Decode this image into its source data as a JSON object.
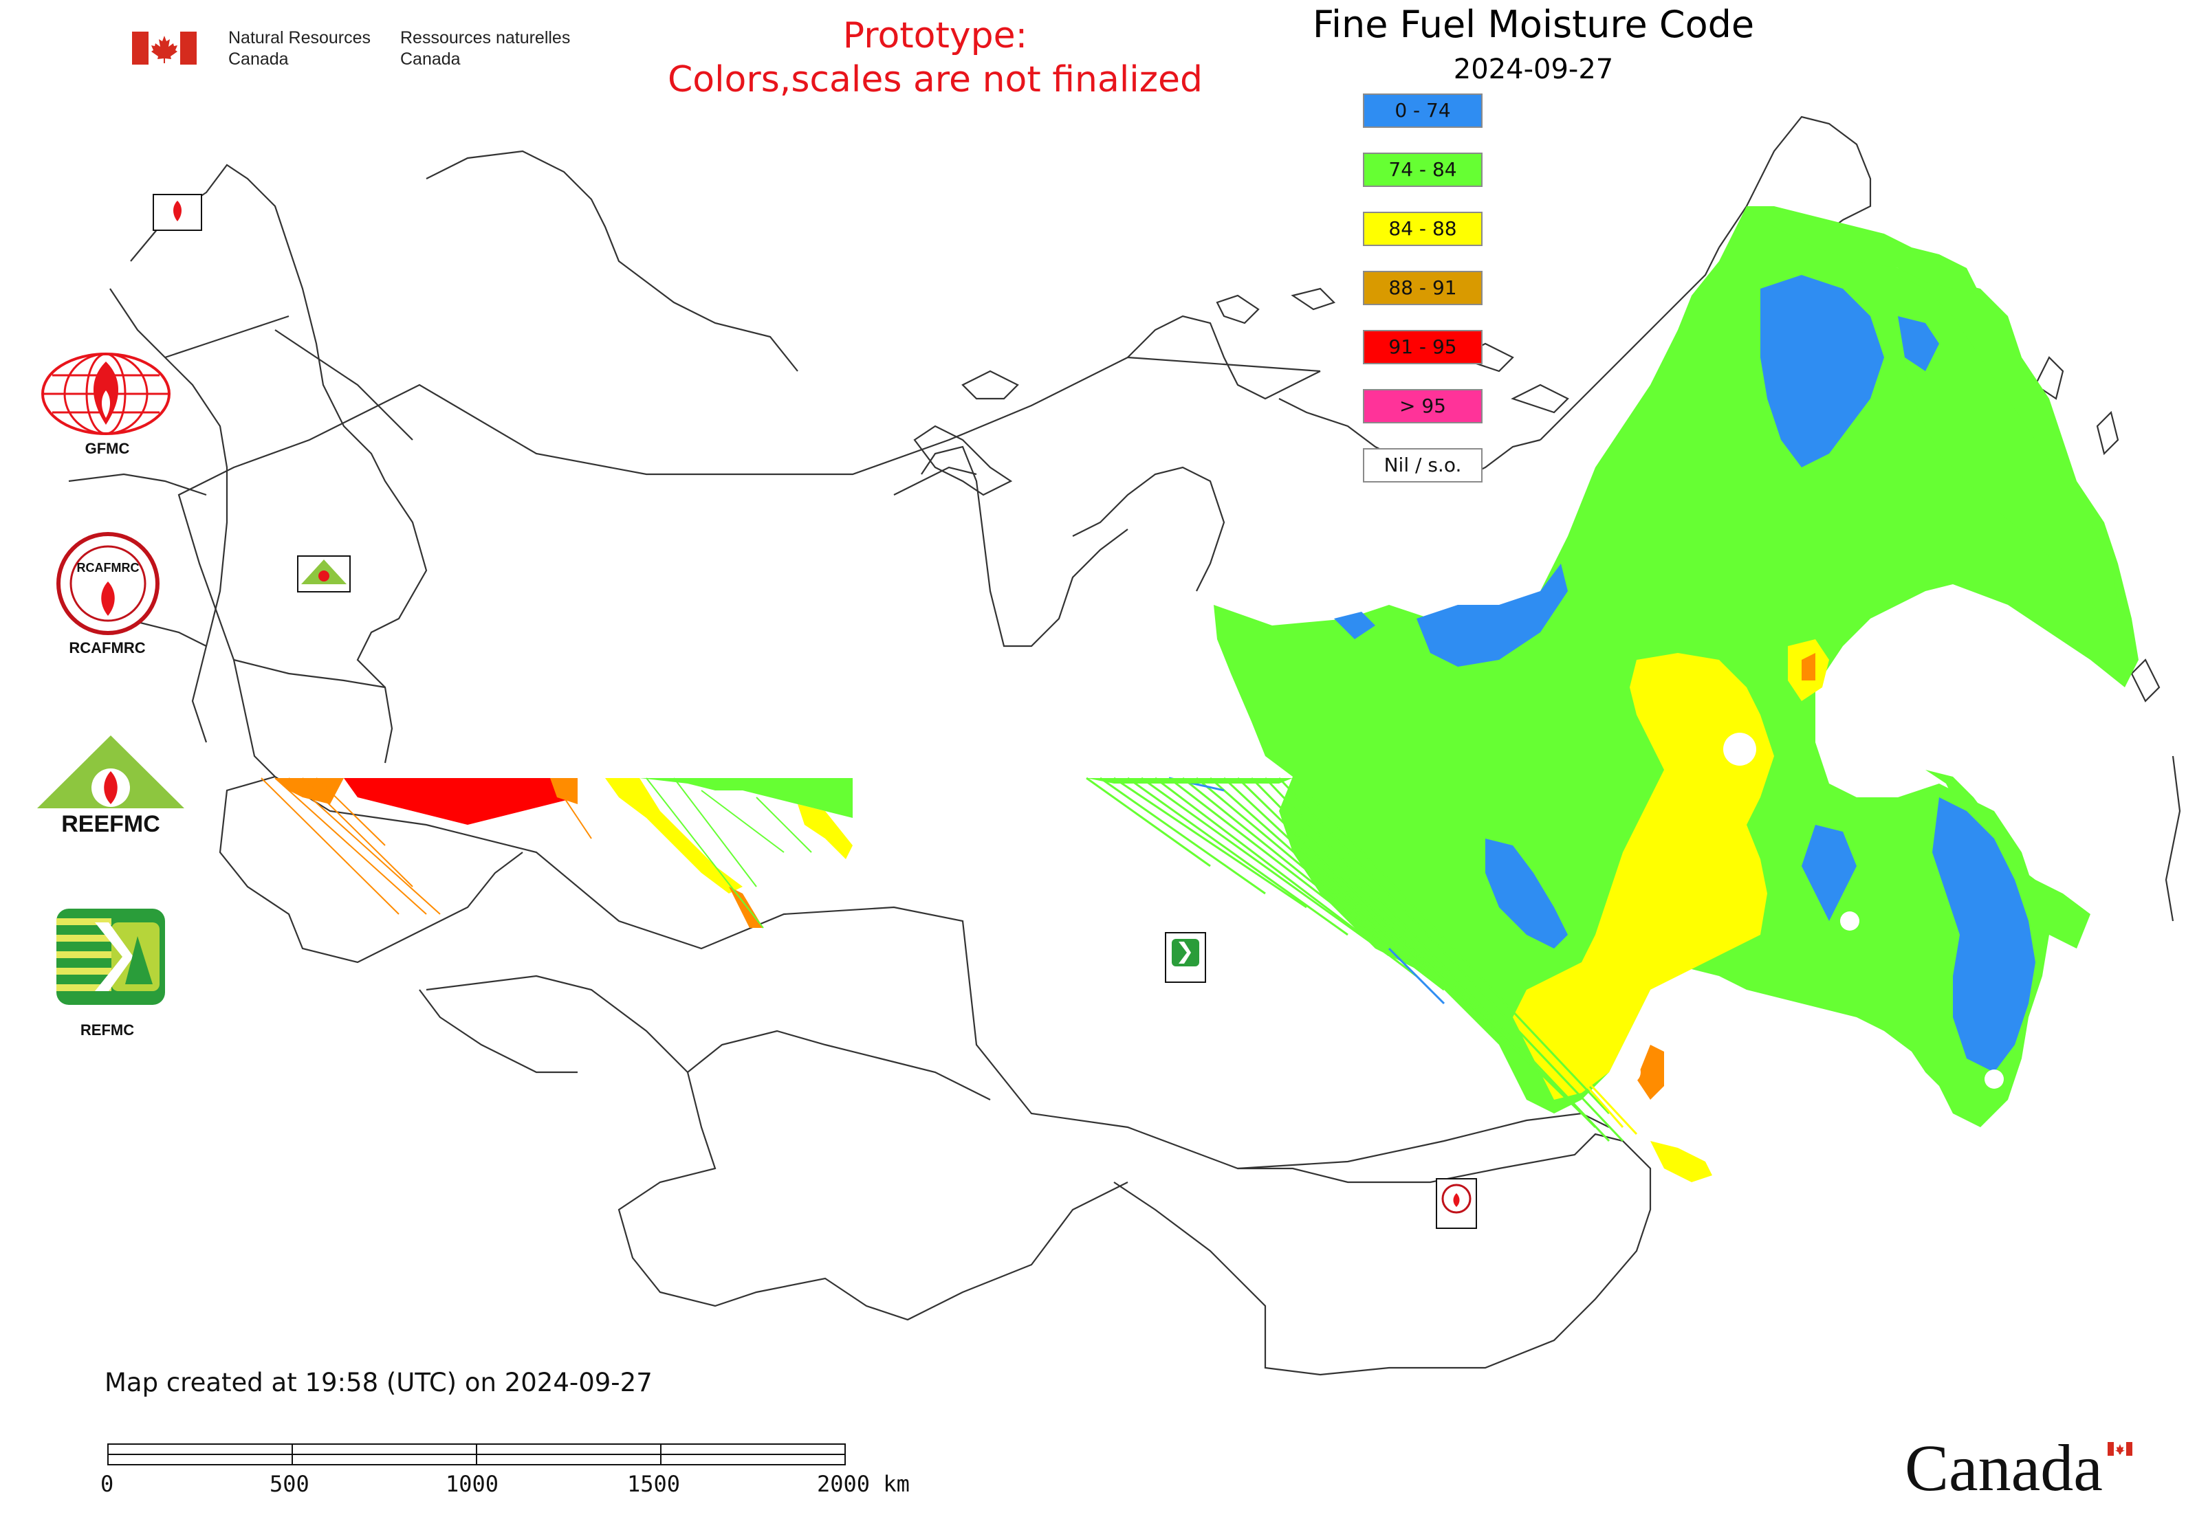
{
  "header": {
    "dept_en": "Natural Resources\nCanada",
    "dept_fr": "Ressources naturelles\nCanada",
    "prototype_line1": "Prototype:",
    "prototype_line2": "Colors,scales are not finalized",
    "title": "Fine Fuel Moisture Code",
    "date": "2024-09-27"
  },
  "legend": {
    "items": [
      {
        "label": "0 - 74",
        "color": "#2f8df2"
      },
      {
        "label": "74 - 84",
        "color": "#66ff33"
      },
      {
        "label": "84 - 88",
        "color": "#ffff00"
      },
      {
        "label": "88 - 91",
        "color": "#d99a00"
      },
      {
        "label": "91 - 95",
        "color": "#ff0000"
      },
      {
        "label": "> 95",
        "color": "#ff3399"
      },
      {
        "label": "Nil / s.o.",
        "color": "#ffffff"
      }
    ]
  },
  "logos": {
    "gfmc_label": "GFMC",
    "rcafmrc_label": "RCAFMRC",
    "reefmc_label": "REEFMC",
    "refmc_label": "REFMC",
    "reefmc_wordmark": "REEFMC",
    "rcafmrc_wordmark": "RCAFMRC"
  },
  "footer": {
    "created": "Map created at 19:58 (UTC) on 2024-09-27",
    "scale_labels": [
      "0",
      "500",
      "1000",
      "1500",
      "2000 km"
    ]
  },
  "wordmark": "Canada",
  "colors": {
    "prototype_red": "#e8141b",
    "boundary": "#333333",
    "canada_red": "#d52b1e"
  },
  "icons": [
    "canada-flag-icon",
    "gfmc-logo-icon",
    "rcafmrc-logo-icon",
    "reefmc-logo-icon",
    "refmc-logo-icon"
  ]
}
